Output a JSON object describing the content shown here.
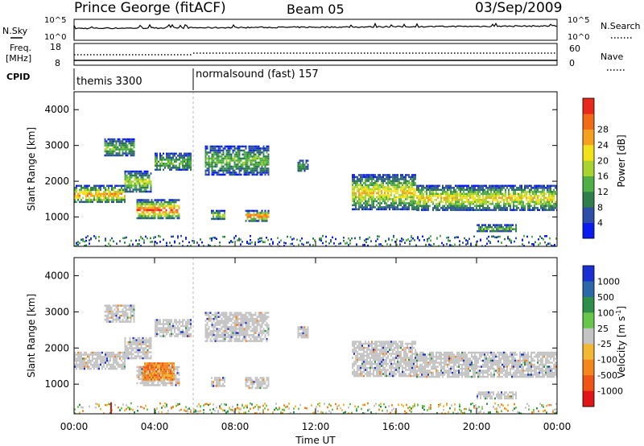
{
  "header": {
    "station": "Prince George (fitACF)",
    "beam": "Beam 05",
    "date": "03/Sep/2009"
  },
  "noise_panel": {
    "left_label": "N.Sky",
    "left_ticks": [
      "10^5",
      "10^0"
    ],
    "right_ticks": [
      "10^5",
      "10^0"
    ],
    "right_label": "N.Search"
  },
  "freq_panel": {
    "left_label_1": "Freq.",
    "left_label_2": "[MHz]",
    "left_ticks": [
      "18",
      "8"
    ],
    "right_ticks": [
      "60",
      "0"
    ],
    "right_label": "Nave"
  },
  "cpid_panel": {
    "label": "CPID",
    "modes": [
      {
        "name": "themis 3300",
        "start_hour": 0
      },
      {
        "name": "normalsound (fast) 157",
        "start_hour": 6
      }
    ]
  },
  "chart_data": [
    {
      "type": "heatmap",
      "name": "power",
      "ylabel": "Slant Range [km]",
      "ylim": [
        180,
        4500
      ],
      "yticks": [
        "1000",
        "2000",
        "3000",
        "4000"
      ],
      "xlim_hours": [
        0,
        24
      ],
      "colorbar": {
        "title": "Power [dB]",
        "ticks": [
          "4",
          "8",
          "12",
          "16",
          "20",
          "24",
          "28"
        ],
        "colors": [
          "#0a1cf0",
          "#2f4fa6",
          "#2e7d4a",
          "#4fae45",
          "#a8d430",
          "#f2e21c",
          "#f6a020",
          "#f06a18",
          "#e8281a"
        ]
      },
      "echo_bands": [
        {
          "t0": 0.0,
          "t1": 2.5,
          "r0": 1400,
          "r1": 1900,
          "level": 6
        },
        {
          "t0": 2.5,
          "t1": 3.8,
          "r0": 1700,
          "r1": 2300,
          "level": 4
        },
        {
          "t0": 3.1,
          "t1": 5.2,
          "r0": 950,
          "r1": 1500,
          "level": 7
        },
        {
          "t0": 4.0,
          "t1": 5.8,
          "r0": 2300,
          "r1": 2800,
          "level": 3
        },
        {
          "t0": 1.5,
          "t1": 3.0,
          "r0": 2700,
          "r1": 3200,
          "level": 3
        },
        {
          "t0": 6.5,
          "t1": 9.7,
          "r0": 2200,
          "r1": 3000,
          "level": 3
        },
        {
          "t0": 8.5,
          "t1": 9.7,
          "r0": 900,
          "r1": 1200,
          "level": 7
        },
        {
          "t0": 6.8,
          "t1": 7.5,
          "r0": 950,
          "r1": 1200,
          "level": 4
        },
        {
          "t0": 11.1,
          "t1": 11.6,
          "r0": 2300,
          "r1": 2600,
          "level": 2
        },
        {
          "t0": 13.8,
          "t1": 17.0,
          "r0": 1200,
          "r1": 2200,
          "level": 5
        },
        {
          "t0": 17.0,
          "t1": 24.0,
          "r0": 1200,
          "r1": 1900,
          "level": 5
        },
        {
          "t0": 20.0,
          "t1": 22.0,
          "r0": 600,
          "r1": 800,
          "level": 3
        }
      ],
      "ground_scatter_band": [
        180,
        500
      ]
    },
    {
      "type": "heatmap",
      "name": "velocity",
      "ylabel": "Slant Range [km]",
      "ylim": [
        180,
        4500
      ],
      "yticks": [
        "1000",
        "2000",
        "3000",
        "4000"
      ],
      "xlabel": "Time UT",
      "xticks": [
        "00:00",
        "04:00",
        "08:00",
        "12:00",
        "16:00",
        "20:00",
        "00:00"
      ],
      "colorbar": {
        "title": "Velocity [m s",
        "title_sup": "-1",
        "title_end": "]",
        "ticks": [
          "1000",
          "500",
          "100",
          "25",
          "-25",
          "-100",
          "-500",
          "-1000"
        ],
        "colors": [
          "#1a2fd0",
          "#2c67a8",
          "#2f8f4a",
          "#68c64a",
          "#c4c4c4",
          "#f2b834",
          "#f5851d",
          "#ef5516",
          "#e01515"
        ]
      },
      "features": [
        {
          "t0": 3.4,
          "t1": 5.0,
          "r0": 1150,
          "r1": 1600,
          "velocity_class": "-500"
        },
        {
          "t0": 0.0,
          "t1": 24.0,
          "r0": 180,
          "r1": 500,
          "velocity_class": "ground"
        },
        {
          "t0": 14.0,
          "t1": 24.0,
          "r0": 900,
          "r1": 2200,
          "velocity_class": "-25"
        }
      ]
    }
  ]
}
